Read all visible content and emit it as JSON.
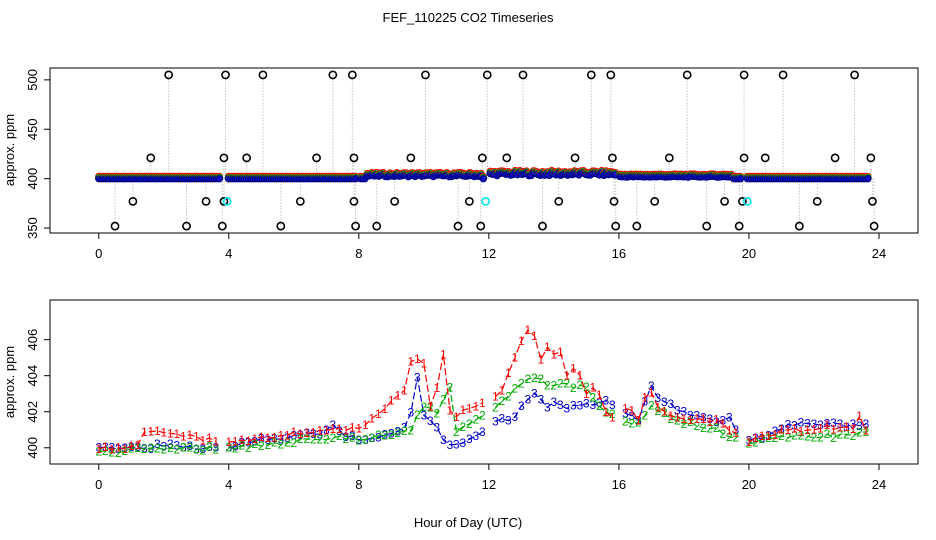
{
  "figure_title": "FEF_110225  CO2 Timeseries",
  "chart_data": [
    {
      "type": "scatter",
      "panel": "top",
      "xlabel": "",
      "ylabel": "approx. ppm",
      "xlim": [
        -1.5,
        25.2
      ],
      "ylim": [
        345,
        512
      ],
      "xticks": [
        0,
        4,
        8,
        12,
        16,
        20,
        24
      ],
      "yticks": [
        350,
        400,
        450,
        500
      ],
      "baseline": 400,
      "spike_times": [
        2.15,
        3.9,
        5.05,
        7.2,
        7.8,
        10.05,
        11.95,
        13.05,
        15.15,
        15.75,
        18.1,
        19.85,
        21.05,
        23.25
      ],
      "spike_value": 505,
      "dip_times": [
        0.5,
        2.7,
        3.8,
        5.6,
        7.9,
        8.55,
        11.05,
        11.75,
        13.65,
        15.9,
        16.55,
        18.7,
        19.7,
        21.55,
        23.85
      ],
      "dip_value": 352,
      "level_421_times": [
        1.6,
        3.85,
        4.55,
        6.7,
        7.85,
        9.6,
        11.8,
        12.55,
        14.65,
        15.8,
        17.55,
        19.85,
        20.5,
        22.65,
        23.75
      ],
      "level_421_value": 421,
      "level_377_times": [
        1.05,
        3.3,
        3.85,
        6.2,
        7.85,
        9.1,
        11.4,
        14.15,
        15.85,
        17.1,
        19.25,
        19.8,
        22.1,
        23.8
      ],
      "level_377_value": 377,
      "cyan_points": [
        [
          3.95,
          377
        ],
        [
          11.9,
          377
        ],
        [
          19.95,
          377
        ]
      ],
      "gaps": [
        [
          3.75,
          3.95
        ],
        [
          7.95,
          8.0
        ],
        [
          11.85,
          12.0
        ],
        [
          15.95,
          16.0
        ],
        [
          19.75,
          19.95
        ]
      ],
      "series": [
        {
          "name": "1",
          "color": "#ff0000"
        },
        {
          "name": "2",
          "color": "#00aa00"
        },
        {
          "name": "3",
          "color": "#0000cc"
        },
        {
          "name": "flagged",
          "color": "#00e5ee"
        },
        {
          "name": "raw",
          "color": "#000000"
        }
      ]
    },
    {
      "type": "scatter",
      "panel": "bottom",
      "xlabel": "Hour of Day (UTC)",
      "ylabel": "approx. ppm",
      "xlim": [
        -1.5,
        25.2
      ],
      "ylim": [
        399.1,
        408.2
      ],
      "xticks": [
        0,
        4,
        8,
        12,
        16,
        20,
        24
      ],
      "yticks": [
        400,
        402,
        404,
        406
      ],
      "gaps": [
        [
          3.75,
          3.95
        ],
        [
          7.95,
          8.0
        ],
        [
          11.85,
          12.0
        ],
        [
          15.95,
          16.0
        ],
        [
          19.75,
          19.95
        ]
      ],
      "series": [
        {
          "name": "1",
          "label": "1",
          "color": "#ff0000",
          "offset": 0.0,
          "x": [
            0,
            1.2,
            1.3,
            4,
            7,
            7.3,
            8,
            9.4,
            9.5,
            9.8,
            10.0,
            10.2,
            10.4,
            10.6,
            10.7,
            10.8,
            11.0,
            11.8,
            12.0,
            12.4,
            12.7,
            13.0,
            13.3,
            13.5,
            13.65,
            13.75,
            13.9,
            14.1,
            14.35,
            14.5,
            14.7,
            14.9,
            15.1,
            15.3,
            15.5,
            15.7,
            16.0,
            16.3,
            16.6,
            16.9,
            17.2,
            17.5,
            18.0,
            19.0,
            19.8,
            20.0,
            20.5,
            21.0,
            21.5,
            22.0,
            22.5,
            22.8,
            23.0,
            23.2,
            23.35,
            23.6
          ],
          "y": [
            399.9,
            400.1,
            401.0,
            400.3,
            401.0,
            401.1,
            401.0,
            403.1,
            404.7,
            404.9,
            404.6,
            402.3,
            403.4,
            405.1,
            402.8,
            402.0,
            401.8,
            402.5,
            402.8,
            403.1,
            404.6,
            406.0,
            406.8,
            405.8,
            404.4,
            406.4,
            404.3,
            406.1,
            404.0,
            403.9,
            404.9,
            403.2,
            403.0,
            403.5,
            402.2,
            401.9,
            401.2,
            402.6,
            401.4,
            403.5,
            402.2,
            401.9,
            401.5,
            401.5,
            400.5,
            400.3,
            400.6,
            400.9,
            401.0,
            401.0,
            401.2,
            401.0,
            401.2,
            401.1,
            401.9,
            401.0
          ]
        },
        {
          "name": "2",
          "label": "2",
          "color": "#00aa00",
          "offset": -0.25,
          "x": [
            0,
            4,
            7.5,
            8,
            9.6,
            9.8,
            10.0,
            10.3,
            10.5,
            10.75,
            11.0,
            11.3,
            11.8,
            12.0,
            12.3,
            12.6,
            12.9,
            13.2,
            13.45,
            13.65,
            13.8,
            14.0,
            14.3,
            14.6,
            15.0,
            15.3,
            15.6,
            16.0,
            16.5,
            17.0,
            17.5,
            18.0,
            19.0,
            19.8,
            20.0,
            21.0,
            22.0,
            23.0,
            23.6
          ],
          "y": [
            399.8,
            400.0,
            400.6,
            400.4,
            401.0,
            401.8,
            402.3,
            402.0,
            401.9,
            403.8,
            401.0,
            401.2,
            401.8,
            402.0,
            402.5,
            402.9,
            403.4,
            403.7,
            403.8,
            403.7,
            403.4,
            403.4,
            403.6,
            403.4,
            403.4,
            402.4,
            401.9,
            401.6,
            401.2,
            402.3,
            401.7,
            401.4,
            401.0,
            400.3,
            400.3,
            400.6,
            400.6,
            400.7,
            400.8
          ]
        },
        {
          "name": "3",
          "label": "3",
          "color": "#0000cc",
          "offset": -0.65,
          "x": [
            0,
            1.0,
            2.0,
            3.0,
            3.7,
            4.0,
            4.5,
            5.0,
            6.0,
            7.0,
            7.2,
            7.6,
            8.0,
            8.5,
            9.0,
            9.3,
            9.5,
            9.8,
            10.0,
            10.3,
            10.7,
            10.85,
            11.0,
            11.3,
            11.8,
            12.0,
            12.3,
            12.6,
            12.9,
            13.1,
            13.3,
            13.5,
            13.7,
            13.9,
            14.1,
            14.4,
            14.7,
            15.0,
            15.3,
            15.6,
            16.0,
            16.3,
            16.6,
            17.0,
            17.3,
            17.6,
            18.0,
            18.5,
            19.0,
            19.4,
            19.8,
            20.0,
            20.5,
            21.0,
            21.5,
            22.0,
            22.5,
            23.0,
            23.6
          ],
          "y": [
            400.0,
            400.0,
            400.1,
            400.0,
            400.1,
            400.1,
            400.3,
            400.5,
            400.6,
            400.9,
            401.2,
            400.6,
            400.5,
            400.6,
            400.7,
            400.9,
            401.2,
            403.8,
            401.7,
            401.3,
            400.2,
            400.3,
            400.2,
            400.3,
            400.9,
            400.8,
            401.6,
            401.4,
            402.0,
            402.6,
            402.7,
            403.5,
            402.0,
            402.3,
            402.6,
            402.1,
            402.3,
            402.5,
            402.3,
            402.6,
            402.2,
            401.8,
            401.6,
            403.4,
            402.4,
            402.5,
            401.9,
            401.8,
            401.5,
            401.6,
            400.5,
            400.4,
            400.7,
            401.1,
            401.3,
            401.2,
            401.3,
            401.2,
            401.3
          ]
        }
      ]
    }
  ]
}
